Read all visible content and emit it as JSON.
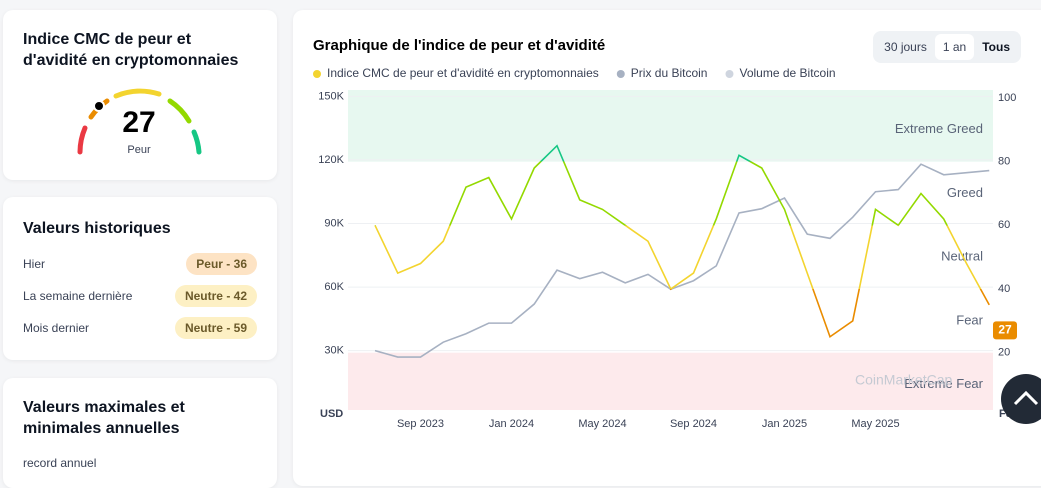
{
  "sidebar": {
    "sentiment_card": {
      "title": "Indice CMC de peur et d'avidité en cryptomonnaies",
      "value": 27,
      "label": "Peur"
    },
    "history_card": {
      "title": "Valeurs historiques",
      "rows": [
        [
          "Hier",
          "Peur - 36"
        ],
        [
          "La semaine dernière",
          "Neutre - 42"
        ],
        [
          "Mois dernier",
          "Neutre - 59"
        ]
      ]
    },
    "extremes_card": {
      "title": "Valeurs maximales et minimales annuelles",
      "subtitle": "record annuel"
    }
  },
  "range_buttons": [
    "30 jours",
    "1 an",
    "Tous"
  ],
  "watermark": "CoinMarketCap",
  "chart_data": {
    "type": "line",
    "title": "Graphique de l'indice de peur et d'avidité",
    "categories": [
      null,
      null,
      "Sep 2023",
      null,
      null,
      null,
      "Jan 2024",
      null,
      null,
      null,
      "May 2024",
      null,
      null,
      null,
      "Sep 2024",
      null,
      null,
      null,
      "Jan 2025",
      null,
      null,
      null,
      "May 2025",
      null,
      null,
      null,
      null,
      null
    ],
    "series": [
      {
        "name": "Indice CMC de peur et d'avidité en cryptomonnaies",
        "color": "#f3d42f",
        "axis": "y2",
        "values": [
          60,
          45,
          48,
          55,
          72,
          75,
          62,
          78,
          85,
          68,
          65,
          60,
          55,
          40,
          45,
          62,
          82,
          78,
          65,
          45,
          25,
          30,
          65,
          60,
          70,
          62,
          48,
          35
        ]
      },
      {
        "name": "Prix du Bitcoin",
        "color": "#a7b1c2",
        "values": [
          30000,
          27000,
          27000,
          34000,
          38000,
          43000,
          43000,
          52000,
          68000,
          64000,
          67000,
          62000,
          66000,
          59000,
          63000,
          70000,
          95000,
          97000,
          102000,
          85000,
          83000,
          93000,
          105000,
          106000,
          118000,
          113000,
          114000,
          115000
        ]
      }
    ],
    "volume_series": {
      "name": "Volume de Bitcoin",
      "color": "#cfd5df"
    },
    "ylabel": "USD",
    "y2label": "F&G",
    "ylim": [
      2000,
      153000
    ],
    "yticks": [
      {
        "value": 30000,
        "label": "30K"
      },
      {
        "value": 60000,
        "label": "60K"
      },
      {
        "value": 90000,
        "label": "90K"
      },
      {
        "value": 120000,
        "label": "120K"
      },
      {
        "value": 150000,
        "label": "150K"
      }
    ],
    "y2lim": [
      2,
      102.5
    ],
    "y2ticks": [
      20,
      40,
      60,
      80,
      100
    ],
    "zones": [
      {
        "label": "Extreme Greed",
        "from": 80,
        "to": 100,
        "color": "#16c784",
        "band": "#e7f8f0"
      },
      {
        "label": "Greed",
        "from": 60,
        "to": 80,
        "color": "#93d900"
      },
      {
        "label": "Neutral",
        "from": 40,
        "to": 60,
        "color": "#f3d42f"
      },
      {
        "label": "Fear",
        "from": 20,
        "to": 40,
        "color": "#ea8c00"
      },
      {
        "label": "Extreme Fear",
        "from": 0,
        "to": 20,
        "color": "#ea3943",
        "band": "#fdeaec"
      }
    ],
    "current_value": 27
  }
}
